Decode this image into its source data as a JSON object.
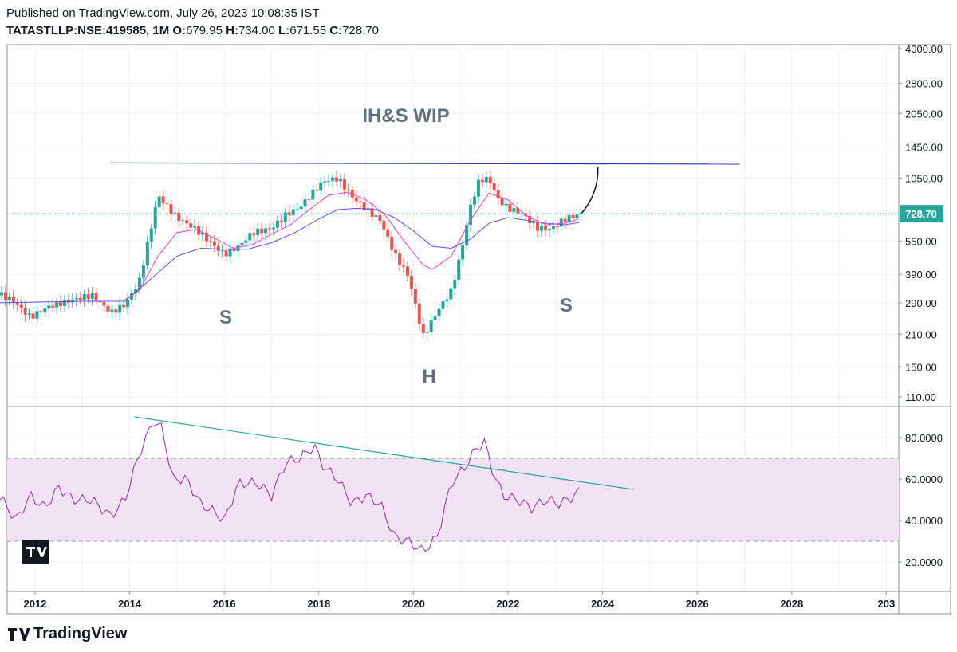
{
  "header": {
    "published": "Published on TradingView.com, July 26, 2023 10:08:35 IST",
    "symbol": "TATASTLLP:NSE:419585, 1M",
    "o_label": "O:",
    "o_value": "679.95",
    "h_label": "H:",
    "h_value": "734.00",
    "l_label": "L:",
    "l_value": "671.55",
    "c_label": "C:",
    "c_value": "728.70"
  },
  "brand": {
    "name": "TradingView",
    "logo_icon": "tradingview-logo-icon"
  },
  "annotations": {
    "title": "IH&S WIP",
    "left_shoulder": "S",
    "head": "H",
    "right_shoulder": "S"
  },
  "colors": {
    "up": "#26a69a",
    "down": "#ef5350",
    "ma_fast": "#e040c8",
    "ma_slow": "#5b4fe0",
    "neckline": "#2f35b8",
    "rsi_line": "#9c27b0",
    "rsi_trend": "#26a69a",
    "rsi_band": "#f1e3f3",
    "last_price_label": "#26a69a"
  },
  "chart_data": [
    {
      "type": "candlestick",
      "interval": "1M",
      "y_scale": "log",
      "y_ticks": [
        "4000.00",
        "2800.00",
        "2050.00",
        "1450.00",
        "1050.00",
        "550.00",
        "390.00",
        "290.00",
        "210.00",
        "150.00",
        "110.00"
      ],
      "x_ticks": [
        "2012",
        "2014",
        "2016",
        "2018",
        "2020",
        "2022",
        "2024",
        "2026",
        "2028",
        "203"
      ],
      "last_price": "728.70",
      "anchors": [
        [
          2011.1,
          330
        ],
        [
          2011.5,
          300
        ],
        [
          2011.9,
          250
        ],
        [
          2012.3,
          280
        ],
        [
          2012.8,
          300
        ],
        [
          2013.2,
          315
        ],
        [
          2013.6,
          262
        ],
        [
          2013.9,
          285
        ],
        [
          2014.2,
          360
        ],
        [
          2014.4,
          560
        ],
        [
          2014.6,
          880
        ],
        [
          2014.8,
          780
        ],
        [
          2015.0,
          700
        ],
        [
          2015.4,
          620
        ],
        [
          2015.8,
          520
        ],
        [
          2016.0,
          478
        ],
        [
          2016.3,
          520
        ],
        [
          2016.6,
          600
        ],
        [
          2017.0,
          625
        ],
        [
          2017.3,
          720
        ],
        [
          2017.6,
          780
        ],
        [
          2017.9,
          920
        ],
        [
          2018.1,
          1020
        ],
        [
          2018.4,
          1050
        ],
        [
          2018.7,
          870
        ],
        [
          2019.0,
          760
        ],
        [
          2019.3,
          680
        ],
        [
          2019.6,
          480
        ],
        [
          2019.9,
          380
        ],
        [
          2020.2,
          205
        ],
        [
          2020.5,
          265
        ],
        [
          2020.8,
          330
        ],
        [
          2021.0,
          480
        ],
        [
          2021.2,
          780
        ],
        [
          2021.4,
          1040
        ],
        [
          2021.6,
          1040
        ],
        [
          2021.8,
          840
        ],
        [
          2022.0,
          770
        ],
        [
          2022.3,
          730
        ],
        [
          2022.6,
          630
        ],
        [
          2022.9,
          620
        ],
        [
          2023.2,
          690
        ],
        [
          2023.55,
          729
        ]
      ],
      "ma_fast_anchors": [
        [
          2013.9,
          300
        ],
        [
          2014.2,
          330
        ],
        [
          2014.6,
          470
        ],
        [
          2015.0,
          600
        ],
        [
          2015.4,
          620
        ],
        [
          2015.8,
          565
        ],
        [
          2016.2,
          510
        ],
        [
          2016.6,
          530
        ],
        [
          2017.0,
          590
        ],
        [
          2017.4,
          650
        ],
        [
          2017.8,
          760
        ],
        [
          2018.2,
          880
        ],
        [
          2018.6,
          910
        ],
        [
          2019.0,
          840
        ],
        [
          2019.4,
          720
        ],
        [
          2019.8,
          550
        ],
        [
          2020.2,
          430
        ],
        [
          2020.4,
          410
        ],
        [
          2020.8,
          470
        ],
        [
          2021.2,
          680
        ],
        [
          2021.6,
          900
        ],
        [
          2022.0,
          840
        ],
        [
          2022.4,
          710
        ],
        [
          2022.8,
          650
        ],
        [
          2023.2,
          660
        ],
        [
          2023.5,
          690
        ]
      ],
      "ma_slow_anchors": [
        [
          2011.0,
          290
        ],
        [
          2013.0,
          295
        ],
        [
          2013.9,
          295
        ],
        [
          2014.5,
          380
        ],
        [
          2015.0,
          470
        ],
        [
          2015.5,
          510
        ],
        [
          2016.0,
          505
        ],
        [
          2016.5,
          505
        ],
        [
          2017.0,
          540
        ],
        [
          2017.5,
          600
        ],
        [
          2018.0,
          690
        ],
        [
          2018.4,
          760
        ],
        [
          2018.8,
          770
        ],
        [
          2019.2,
          760
        ],
        [
          2019.6,
          700
        ],
        [
          2020.0,
          610
        ],
        [
          2020.4,
          520
        ],
        [
          2020.8,
          510
        ],
        [
          2021.2,
          560
        ],
        [
          2021.6,
          660
        ],
        [
          2022.0,
          700
        ],
        [
          2022.4,
          680
        ],
        [
          2022.8,
          660
        ],
        [
          2023.2,
          650
        ],
        [
          2023.5,
          665
        ]
      ],
      "neckline": {
        "x1": 2013.6,
        "y1": 1230,
        "x2": 2026.9,
        "y2": 1215
      },
      "projection": [
        [
          2023.55,
          729
        ],
        [
          2023.75,
          900
        ],
        [
          2023.9,
          1180
        ]
      ]
    },
    {
      "type": "line",
      "name": "RSI",
      "y_ticks": [
        "80.0000",
        "60.0000",
        "40.0000",
        "20.0000"
      ],
      "ylim": [
        8,
        96
      ],
      "upper_band": 70,
      "lower_band": 30,
      "anchors": [
        [
          2011.0,
          58
        ],
        [
          2011.3,
          50
        ],
        [
          2011.6,
          40
        ],
        [
          2011.9,
          52
        ],
        [
          2012.2,
          46
        ],
        [
          2012.5,
          56
        ],
        [
          2012.8,
          50
        ],
        [
          2013.2,
          50
        ],
        [
          2013.6,
          42
        ],
        [
          2013.9,
          50
        ],
        [
          2014.2,
          72
        ],
        [
          2014.5,
          88
        ],
        [
          2014.7,
          84
        ],
        [
          2014.9,
          60
        ],
        [
          2015.2,
          60
        ],
        [
          2015.5,
          48
        ],
        [
          2015.8,
          44
        ],
        [
          2016.0,
          40
        ],
        [
          2016.3,
          58
        ],
        [
          2016.7,
          58
        ],
        [
          2017.0,
          52
        ],
        [
          2017.3,
          68
        ],
        [
          2017.6,
          70
        ],
        [
          2017.9,
          76
        ],
        [
          2018.1,
          66
        ],
        [
          2018.4,
          60
        ],
        [
          2018.7,
          48
        ],
        [
          2019.0,
          52
        ],
        [
          2019.3,
          48
        ],
        [
          2019.6,
          32
        ],
        [
          2019.9,
          30
        ],
        [
          2020.2,
          25
        ],
        [
          2020.5,
          32
        ],
        [
          2020.8,
          58
        ],
        [
          2021.1,
          66
        ],
        [
          2021.3,
          74
        ],
        [
          2021.5,
          78
        ],
        [
          2021.7,
          62
        ],
        [
          2021.9,
          52
        ],
        [
          2022.2,
          50
        ],
        [
          2022.5,
          46
        ],
        [
          2022.8,
          50
        ],
        [
          2023.1,
          48
        ],
        [
          2023.4,
          52
        ],
        [
          2023.55,
          55
        ]
      ],
      "trendline": {
        "x1": 2014.1,
        "y1": 90,
        "x2": 2024.65,
        "y2": 55
      }
    }
  ]
}
